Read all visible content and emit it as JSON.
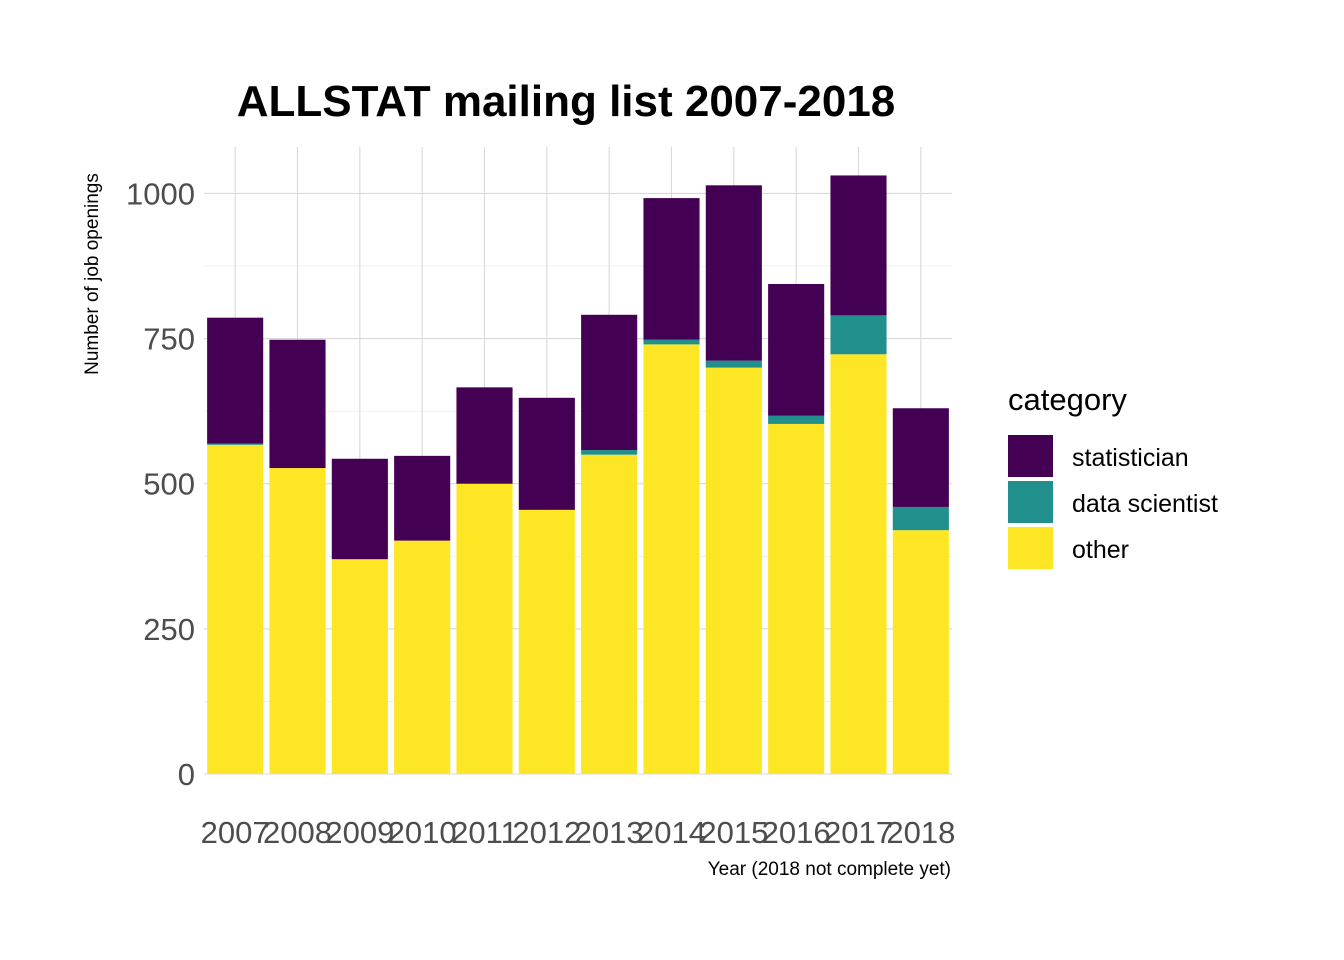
{
  "chart_data": {
    "type": "bar",
    "stacked": true,
    "title": "ALLSTAT mailing list 2007-2018",
    "xlabel": "Year (2018 not complete yet)",
    "ylabel": "Number of job openings",
    "categories": [
      "2007",
      "2008",
      "2009",
      "2010",
      "2011",
      "2012",
      "2013",
      "2014",
      "2015",
      "2016",
      "2017",
      "2018"
    ],
    "ylim": [
      0,
      1080
    ],
    "yticks": [
      0,
      250,
      500,
      750,
      1000
    ],
    "grid": true,
    "legend": {
      "title": "category",
      "placement": "right"
    },
    "series": [
      {
        "name": "other",
        "color": "#FDE725",
        "values": [
          567,
          527,
          370,
          402,
          500,
          455,
          550,
          740,
          700,
          603,
          723,
          420
        ]
      },
      {
        "name": "data scientist",
        "color": "#21908C",
        "values": [
          2,
          0,
          0,
          0,
          0,
          0,
          8,
          8,
          12,
          14,
          67,
          40
        ]
      },
      {
        "name": "statistician",
        "color": "#440154",
        "values": [
          217,
          221,
          173,
          146,
          166,
          193,
          233,
          244,
          302,
          227,
          241,
          170
        ]
      }
    ],
    "legend_order": [
      "statistician",
      "data scientist",
      "other"
    ]
  }
}
